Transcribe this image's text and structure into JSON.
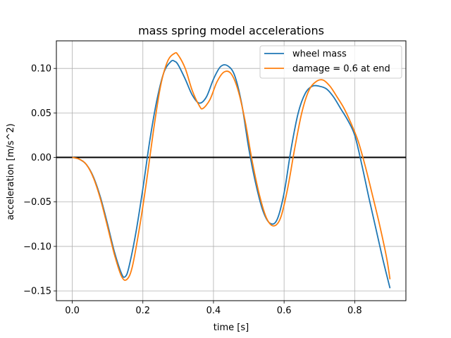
{
  "chart_data": {
    "type": "line",
    "title": "mass spring model accelerations",
    "xlabel": "time [s]",
    "ylabel": "acceleration [m/s^2)",
    "xlim": [
      -0.045,
      0.945
    ],
    "ylim": [
      -0.161,
      0.131
    ],
    "xticks": [
      0.0,
      0.2,
      0.4,
      0.6,
      0.8
    ],
    "xtick_labels": [
      "0.0",
      "0.2",
      "0.4",
      "0.6",
      "0.8"
    ],
    "yticks": [
      -0.15,
      -0.1,
      -0.05,
      0.0,
      0.05,
      0.1
    ],
    "ytick_labels": [
      "−0.15",
      "−0.10",
      "−0.05",
      "0.00",
      "0.05",
      "0.10"
    ],
    "grid": true,
    "legend_position": "top-right",
    "reference_line": {
      "y": 0.0,
      "color": "#000000"
    },
    "series": [
      {
        "name": "wheel mass",
        "color": "#1f77b4",
        "x": [
          0.0,
          0.02,
          0.04,
          0.06,
          0.08,
          0.1,
          0.12,
          0.14,
          0.15,
          0.16,
          0.18,
          0.2,
          0.22,
          0.24,
          0.26,
          0.28,
          0.29,
          0.3,
          0.32,
          0.34,
          0.36,
          0.38,
          0.4,
          0.42,
          0.44,
          0.46,
          0.48,
          0.5,
          0.52,
          0.54,
          0.56,
          0.58,
          0.6,
          0.62,
          0.64,
          0.66,
          0.68,
          0.7,
          0.72,
          0.74,
          0.76,
          0.78,
          0.8,
          0.82,
          0.84,
          0.86,
          0.88,
          0.9
        ],
        "y": [
          0.0,
          -0.002,
          -0.008,
          -0.022,
          -0.045,
          -0.075,
          -0.107,
          -0.131,
          -0.134,
          -0.124,
          -0.085,
          -0.035,
          0.02,
          0.065,
          0.096,
          0.108,
          0.108,
          0.104,
          0.088,
          0.07,
          0.061,
          0.068,
          0.088,
          0.102,
          0.103,
          0.092,
          0.06,
          0.01,
          -0.03,
          -0.06,
          -0.074,
          -0.07,
          -0.04,
          0.01,
          0.05,
          0.072,
          0.08,
          0.08,
          0.077,
          0.068,
          0.055,
          0.042,
          0.025,
          -0.008,
          -0.045,
          -0.08,
          -0.115,
          -0.147
        ]
      },
      {
        "name": "damage = 0.6 at end",
        "color": "#ff7f0e",
        "x": [
          0.0,
          0.02,
          0.04,
          0.06,
          0.08,
          0.1,
          0.12,
          0.14,
          0.155,
          0.17,
          0.19,
          0.21,
          0.23,
          0.25,
          0.27,
          0.29,
          0.3,
          0.32,
          0.34,
          0.36,
          0.37,
          0.39,
          0.41,
          0.43,
          0.45,
          0.47,
          0.49,
          0.51,
          0.53,
          0.55,
          0.57,
          0.59,
          0.61,
          0.63,
          0.65,
          0.67,
          0.69,
          0.71,
          0.73,
          0.75,
          0.77,
          0.79,
          0.81,
          0.83,
          0.85,
          0.87,
          0.89,
          0.9
        ],
        "y": [
          0.0,
          -0.002,
          -0.008,
          -0.023,
          -0.047,
          -0.078,
          -0.11,
          -0.134,
          -0.137,
          -0.123,
          -0.08,
          -0.028,
          0.03,
          0.08,
          0.108,
          0.117,
          0.115,
          0.1,
          0.075,
          0.058,
          0.055,
          0.065,
          0.085,
          0.096,
          0.094,
          0.075,
          0.04,
          -0.005,
          -0.042,
          -0.068,
          -0.077,
          -0.068,
          -0.035,
          0.01,
          0.05,
          0.075,
          0.085,
          0.087,
          0.08,
          0.068,
          0.055,
          0.038,
          0.018,
          -0.01,
          -0.042,
          -0.075,
          -0.112,
          -0.137
        ]
      }
    ]
  }
}
